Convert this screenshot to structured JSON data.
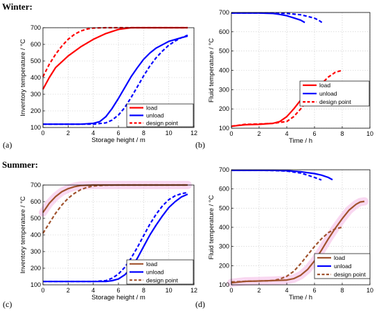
{
  "sections": {
    "winter": "Winter:",
    "summer": "Summer:"
  },
  "panel_labels": [
    "(a)",
    "(b)",
    "(c)",
    "(d)"
  ],
  "colors": {
    "red": "#ff0000",
    "blue": "#0000ff",
    "brown": "#a0522d",
    "grid": "#c8c8c8",
    "highlight": "#f4b8e6"
  },
  "chart_data": [
    {
      "id": "a",
      "type": "line",
      "xlabel": "Storage height / m",
      "ylabel": "Inventory temperature / °C",
      "xlim": [
        0,
        12
      ],
      "ylim": [
        100,
        700
      ],
      "xticks": [
        0,
        2,
        4,
        6,
        8,
        10,
        12
      ],
      "yticks": [
        100,
        200,
        300,
        400,
        500,
        600,
        700
      ],
      "grid": true,
      "legend_position": "lower-right",
      "legend": [
        {
          "label": "load",
          "color": "red",
          "dash": false
        },
        {
          "label": "unload",
          "color": "blue",
          "dash": false
        },
        {
          "label": "design point",
          "color": "red",
          "dash": true
        }
      ],
      "series": [
        {
          "color": "red",
          "dash": false,
          "points": [
            [
              0,
              330
            ],
            [
              0.5,
              400
            ],
            [
              1,
              460
            ],
            [
              2,
              530
            ],
            [
              3,
              585
            ],
            [
              4,
              630
            ],
            [
              5,
              665
            ],
            [
              6,
              690
            ],
            [
              7,
              700
            ],
            [
              8,
              700
            ],
            [
              9,
              700
            ],
            [
              10,
              700
            ],
            [
              11.5,
              700
            ]
          ]
        },
        {
          "color": "red",
          "dash": true,
          "points": [
            [
              0,
              405
            ],
            [
              0.5,
              480
            ],
            [
              1,
              540
            ],
            [
              1.5,
              590
            ],
            [
              2,
              630
            ],
            [
              2.5,
              660
            ],
            [
              3,
              680
            ],
            [
              3.5,
              692
            ],
            [
              4,
              698
            ],
            [
              5,
              700
            ],
            [
              6,
              700
            ],
            [
              8,
              700
            ],
            [
              10,
              700
            ],
            [
              11.5,
              700
            ]
          ]
        },
        {
          "color": "blue",
          "dash": false,
          "points": [
            [
              0,
              120
            ],
            [
              3,
              120
            ],
            [
              4,
              125
            ],
            [
              4.5,
              135
            ],
            [
              5,
              165
            ],
            [
              5.5,
              215
            ],
            [
              6,
              275
            ],
            [
              6.5,
              340
            ],
            [
              7,
              405
            ],
            [
              7.5,
              460
            ],
            [
              8,
              510
            ],
            [
              8.5,
              548
            ],
            [
              9,
              578
            ],
            [
              10,
              618
            ],
            [
              11,
              640
            ],
            [
              11.5,
              650
            ]
          ]
        },
        {
          "color": "blue",
          "dash": true,
          "points": [
            [
              0,
              120
            ],
            [
              4,
              120
            ],
            [
              5,
              128
            ],
            [
              5.5,
              145
            ],
            [
              6,
              175
            ],
            [
              6.5,
              220
            ],
            [
              7,
              280
            ],
            [
              7.5,
              345
            ],
            [
              8,
              410
            ],
            [
              8.5,
              470
            ],
            [
              9,
              520
            ],
            [
              9.5,
              560
            ],
            [
              10,
              595
            ],
            [
              10.5,
              620
            ],
            [
              11,
              640
            ],
            [
              11.5,
              655
            ]
          ]
        }
      ]
    },
    {
      "id": "b",
      "type": "line",
      "xlabel": "Time / h",
      "ylabel": "Fluid temperature / °C",
      "xlim": [
        0,
        10
      ],
      "ylim": [
        100,
        700
      ],
      "xticks": [
        0,
        2,
        4,
        6,
        8,
        10
      ],
      "yticks": [
        100,
        200,
        300,
        400,
        500,
        600,
        700
      ],
      "grid": true,
      "legend_position": "center-right",
      "legend": [
        {
          "label": "load",
          "color": "red",
          "dash": false
        },
        {
          "label": "unload",
          "color": "blue",
          "dash": false
        },
        {
          "label": "design point",
          "color": "red",
          "dash": true
        }
      ],
      "series": [
        {
          "color": "red",
          "dash": false,
          "points": [
            [
              0,
              110
            ],
            [
              1,
              118
            ],
            [
              2,
              120
            ],
            [
              3,
              125
            ],
            [
              3.5,
              135
            ],
            [
              4,
              160
            ],
            [
              4.5,
              200
            ],
            [
              5,
              245
            ],
            [
              5.5,
              285
            ],
            [
              6,
              315
            ],
            [
              6.3,
              325
            ],
            [
              6.6,
              328
            ]
          ]
        },
        {
          "color": "red",
          "dash": true,
          "points": [
            [
              0,
              110
            ],
            [
              1,
              120
            ],
            [
              2,
              122
            ],
            [
              3,
              125
            ],
            [
              4,
              135
            ],
            [
              4.5,
              160
            ],
            [
              5,
              200
            ],
            [
              5.5,
              245
            ],
            [
              6,
              290
            ],
            [
              6.5,
              330
            ],
            [
              7,
              365
            ],
            [
              7.5,
              390
            ],
            [
              8,
              400
            ]
          ]
        },
        {
          "color": "blue",
          "dash": false,
          "points": [
            [
              0,
              697
            ],
            [
              1,
              697
            ],
            [
              2,
              697
            ],
            [
              3,
              695
            ],
            [
              3.5,
              690
            ],
            [
              4,
              683
            ],
            [
              4.5,
              672
            ],
            [
              5,
              660
            ],
            [
              5.3,
              648
            ]
          ]
        },
        {
          "color": "blue",
          "dash": true,
          "points": [
            [
              0,
              697
            ],
            [
              2,
              697
            ],
            [
              3,
              697
            ],
            [
              4,
              695
            ],
            [
              5,
              688
            ],
            [
              5.5,
              680
            ],
            [
              6,
              670
            ],
            [
              6.3,
              660
            ],
            [
              6.6,
              645
            ]
          ]
        }
      ]
    },
    {
      "id": "c",
      "type": "line",
      "xlabel": "Storage height / m",
      "ylabel": "Inventory temperature / °C",
      "xlim": [
        0,
        12
      ],
      "ylim": [
        100,
        700
      ],
      "xticks": [
        0,
        2,
        4,
        6,
        8,
        10,
        12
      ],
      "yticks": [
        100,
        200,
        300,
        400,
        500,
        600,
        700
      ],
      "grid": true,
      "legend_position": "lower-right",
      "legend": [
        {
          "label": "load",
          "color": "brown",
          "dash": false
        },
        {
          "label": "unload",
          "color": "blue",
          "dash": false
        },
        {
          "label": "design point",
          "color": "brown",
          "dash": true
        }
      ],
      "series": [
        {
          "color": "brown",
          "dash": false,
          "highlight": true,
          "points": [
            [
              0,
              535
            ],
            [
              0.5,
              590
            ],
            [
              1,
              630
            ],
            [
              1.5,
              660
            ],
            [
              2,
              678
            ],
            [
              2.5,
              690
            ],
            [
              3,
              697
            ],
            [
              4,
              700
            ],
            [
              6,
              700
            ],
            [
              8,
              700
            ],
            [
              10,
              700
            ],
            [
              11.5,
              700
            ]
          ]
        },
        {
          "color": "brown",
          "dash": true,
          "points": [
            [
              0,
              410
            ],
            [
              0.5,
              470
            ],
            [
              1,
              530
            ],
            [
              1.5,
              580
            ],
            [
              2,
              620
            ],
            [
              2.5,
              650
            ],
            [
              3,
              672
            ],
            [
              3.5,
              686
            ],
            [
              4,
              694
            ],
            [
              5,
              699
            ],
            [
              6,
              700
            ],
            [
              8,
              700
            ],
            [
              11.5,
              700
            ]
          ]
        },
        {
          "color": "blue",
          "dash": false,
          "points": [
            [
              0,
              120
            ],
            [
              5,
              120
            ],
            [
              5.5,
              125
            ],
            [
              6,
              135
            ],
            [
              6.5,
              160
            ],
            [
              7,
              200
            ],
            [
              7.5,
              260
            ],
            [
              8,
              330
            ],
            [
              8.5,
              400
            ],
            [
              9,
              460
            ],
            [
              9.5,
              515
            ],
            [
              10,
              565
            ],
            [
              10.5,
              600
            ],
            [
              11,
              628
            ],
            [
              11.5,
              645
            ]
          ]
        },
        {
          "color": "blue",
          "dash": true,
          "points": [
            [
              0,
              120
            ],
            [
              4,
              120
            ],
            [
              5,
              125
            ],
            [
              5.5,
              140
            ],
            [
              6,
              165
            ],
            [
              6.5,
              205
            ],
            [
              7,
              260
            ],
            [
              7.5,
              325
            ],
            [
              8,
              395
            ],
            [
              8.5,
              465
            ],
            [
              9,
              525
            ],
            [
              9.5,
              575
            ],
            [
              10,
              612
            ],
            [
              10.5,
              635
            ],
            [
              11,
              648
            ],
            [
              11.5,
              655
            ]
          ]
        }
      ]
    },
    {
      "id": "d",
      "type": "line",
      "xlabel": "Time / h",
      "ylabel": "Fluid temperature / °C",
      "xlim": [
        0,
        10
      ],
      "ylim": [
        100,
        700
      ],
      "xticks": [
        0,
        2,
        4,
        6,
        8,
        10
      ],
      "yticks": [
        100,
        200,
        300,
        400,
        500,
        600,
        700
      ],
      "grid": true,
      "legend_position": "lower-left",
      "legend": [
        {
          "label": "load",
          "color": "brown",
          "dash": false
        },
        {
          "label": "unload",
          "color": "blue",
          "dash": false
        },
        {
          "label": "design point",
          "color": "brown",
          "dash": true
        }
      ],
      "series": [
        {
          "color": "brown",
          "dash": false,
          "highlight": true,
          "points": [
            [
              0,
              110
            ],
            [
              1,
              118
            ],
            [
              2,
              120
            ],
            [
              3,
              122
            ],
            [
              4,
              125
            ],
            [
              4.5,
              132
            ],
            [
              5,
              150
            ],
            [
              5.5,
              180
            ],
            [
              6,
              225
            ],
            [
              6.5,
              280
            ],
            [
              7,
              340
            ],
            [
              7.5,
              395
            ],
            [
              8,
              445
            ],
            [
              8.5,
              490
            ],
            [
              9,
              520
            ],
            [
              9.3,
              532
            ],
            [
              9.6,
              535
            ]
          ]
        },
        {
          "color": "brown",
          "dash": true,
          "points": [
            [
              0,
              115
            ],
            [
              1,
              118
            ],
            [
              2,
              120
            ],
            [
              3,
              122
            ],
            [
              3.5,
              130
            ],
            [
              4,
              145
            ],
            [
              4.5,
              170
            ],
            [
              5,
              210
            ],
            [
              5.5,
              255
            ],
            [
              6,
              300
            ],
            [
              6.5,
              340
            ],
            [
              7,
              372
            ],
            [
              7.5,
              392
            ],
            [
              8,
              400
            ]
          ]
        },
        {
          "color": "blue",
          "dash": false,
          "points": [
            [
              0,
              697
            ],
            [
              2,
              697
            ],
            [
              3,
              697
            ],
            [
              4,
              695
            ],
            [
              5,
              690
            ],
            [
              6,
              680
            ],
            [
              6.5,
              672
            ],
            [
              7,
              660
            ],
            [
              7.3,
              648
            ]
          ]
        },
        {
          "color": "blue",
          "dash": true,
          "points": [
            [
              0,
              697
            ],
            [
              2,
              697
            ],
            [
              3,
              696
            ],
            [
              4,
              693
            ],
            [
              5,
              683
            ],
            [
              5.5,
              672
            ],
            [
              6,
              660
            ],
            [
              6.5,
              647
            ]
          ]
        }
      ]
    }
  ]
}
